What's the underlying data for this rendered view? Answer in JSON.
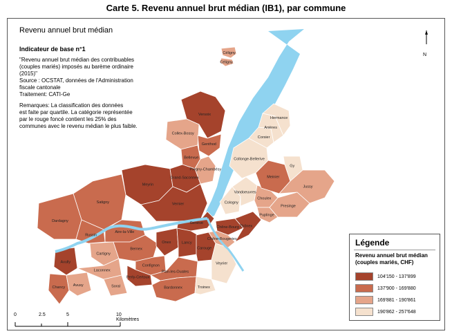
{
  "heading": "Carte 5. Revenu annuel brut médian (IB1), par commune",
  "map_title": "Revenu annuel brut médian",
  "indicator": "Indicateur de base n°1",
  "description": "\"Revenu annuel brut médian des contribuables\n(couples mariés) imposés au barème ordinaire\n (2015)\"\nSource : OCSTAT, données de l'Administration\nfiscale cantonale\nTraitement: CATI-Ge",
  "remarks": "Remarques: La classification des données\nest faite par quartile. La catégorie représentée\npar le rouge foncé contient les 25% des\ncommunes avec le revenu médian le plus faible.",
  "north_label": "N",
  "legend": {
    "title": "Légende",
    "subtitle": "Revenu annuel brut médian (couples mariés, CHF)",
    "classes": [
      {
        "label": "104'150 - 137'899",
        "color": "#A5432C"
      },
      {
        "label": "137'900 - 169'880",
        "color": "#C96B4E"
      },
      {
        "label": "169'881 - 190'861",
        "color": "#E5A58A"
      },
      {
        "label": "190'862 - 257'648",
        "color": "#F5E1CE"
      }
    ]
  },
  "scale": {
    "ticks": [
      "0",
      "2.5",
      "5",
      "10 Kilomètres"
    ]
  },
  "colors": {
    "lake": "#8FD3F0",
    "river": "#8FD3F0",
    "border": "#ffffff"
  },
  "communes": [
    {
      "name": "Céligny",
      "class": 2
    },
    {
      "name": "Céligny",
      "class": 2
    },
    {
      "name": "Versoix",
      "class": 0
    },
    {
      "name": "Collex-Bossy",
      "class": 2
    },
    {
      "name": "Genthod",
      "class": 1
    },
    {
      "name": "Bellevue",
      "class": 1
    },
    {
      "name": "Pregny-Chambésy",
      "class": 2
    },
    {
      "name": "Meyrin",
      "class": 0
    },
    {
      "name": "Grand-Saconnex",
      "class": 0
    },
    {
      "name": "Satigny",
      "class": 1
    },
    {
      "name": "Vernier",
      "class": 0
    },
    {
      "name": "Genève",
      "class": 0
    },
    {
      "name": "Dardagny",
      "class": 1
    },
    {
      "name": "Russin",
      "class": 1
    },
    {
      "name": "Aire-la-Ville",
      "class": 1
    },
    {
      "name": "Cartigny",
      "class": 2
    },
    {
      "name": "Bernex",
      "class": 1
    },
    {
      "name": "Onex",
      "class": 0
    },
    {
      "name": "Lancy",
      "class": 0
    },
    {
      "name": "Confignon",
      "class": 1
    },
    {
      "name": "Carouge",
      "class": 0
    },
    {
      "name": "Avully",
      "class": 0
    },
    {
      "name": "Chancy",
      "class": 1
    },
    {
      "name": "Avusy",
      "class": 2
    },
    {
      "name": "Laconnex",
      "class": 2
    },
    {
      "name": "Soral",
      "class": 2
    },
    {
      "name": "Perly-Certoux",
      "class": 0
    },
    {
      "name": "Plan-les-Ouates",
      "class": 1
    },
    {
      "name": "Bardonnex",
      "class": 1
    },
    {
      "name": "Veyrier",
      "class": 3
    },
    {
      "name": "Troinex",
      "class": 3
    },
    {
      "name": "Chêne-Bourg",
      "class": 0
    },
    {
      "name": "Chêne-Bougeries",
      "class": 2
    },
    {
      "name": "Thônex",
      "class": 0
    },
    {
      "name": "Cologny",
      "class": 3
    },
    {
      "name": "Vandoeuvres",
      "class": 3
    },
    {
      "name": "Choulex",
      "class": 2
    },
    {
      "name": "Puplinge",
      "class": 2
    },
    {
      "name": "Presinge",
      "class": 2
    },
    {
      "name": "Meinier",
      "class": 1
    },
    {
      "name": "Collonge-Bellerive",
      "class": 3
    },
    {
      "name": "Corsier",
      "class": 3
    },
    {
      "name": "Anières",
      "class": 3
    },
    {
      "name": "Hermance",
      "class": 3
    },
    {
      "name": "Gy",
      "class": 3
    },
    {
      "name": "Jussy",
      "class": 2
    }
  ]
}
